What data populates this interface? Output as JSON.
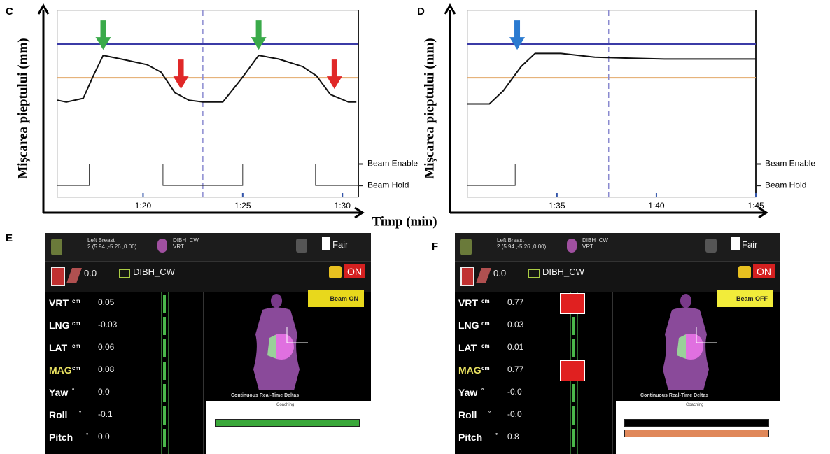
{
  "panels": {
    "c": "C",
    "d": "D",
    "e": "E",
    "f": "F"
  },
  "chart_data": [
    {
      "type": "line",
      "y_label": "Mișcarea pieptului (mm)",
      "x_label": "Timp (min)",
      "xlim": [
        75.7,
        90.8
      ],
      "ylim": [
        0,
        10
      ],
      "y2lim": [
        -0.55,
        8.16
      ],
      "xticks": [
        {
          "value": 80,
          "label": "1:20"
        },
        {
          "value": 85,
          "label": "1:25"
        },
        {
          "value": 90,
          "label": "1:30"
        }
      ],
      "y2ticks": [
        {
          "value": 1,
          "label": "Beam Enable"
        },
        {
          "value": 0,
          "label": "Beam Hold"
        }
      ],
      "hlines": [
        {
          "value": 8.2,
          "color": "#3b3ba6"
        },
        {
          "value": 6.4,
          "color": "#e3a868"
        }
      ],
      "vlines": [
        {
          "value": 83.0,
          "color": "#8a8ad0"
        }
      ],
      "arrows": [
        {
          "x": 78.0,
          "tip": 7.9,
          "color": "#3aaa4a"
        },
        {
          "x": 81.9,
          "tip": 5.8,
          "color": "#e02828"
        },
        {
          "x": 85.8,
          "tip": 7.9,
          "color": "#3aaa4a"
        },
        {
          "x": 89.6,
          "tip": 5.8,
          "color": "#e02828"
        }
      ],
      "series": [
        {
          "color": "#111111",
          "x": [
            75.7,
            76.15,
            77.0,
            77.5,
            78.0,
            78.9,
            80.2,
            80.9,
            81.6,
            82.3,
            83.0,
            84.0,
            84.9,
            85.8,
            86.8,
            88.0,
            88.7,
            89.4,
            90.3,
            90.7
          ],
          "values": [
            5.2,
            5.1,
            5.3,
            6.5,
            7.6,
            7.4,
            7.1,
            6.7,
            5.6,
            5.2,
            5.1,
            5.1,
            6.3,
            7.6,
            7.4,
            7.0,
            6.5,
            5.5,
            5.1,
            5.1
          ]
        },
        {
          "color": "#333333",
          "axis": "y2",
          "x": [
            75.7,
            77.3,
            77.3,
            81.0,
            81.0,
            85.0,
            85.0,
            88.65,
            88.65,
            90.8
          ],
          "values": [
            0,
            0,
            1,
            1,
            0,
            0,
            1,
            1,
            0,
            0
          ]
        }
      ]
    },
    {
      "type": "line",
      "y_label": "Mișcarea pieptului (mm)",
      "xlim": [
        90.5,
        105
      ],
      "ylim": [
        0,
        10
      ],
      "y2lim": [
        -0.55,
        8.16
      ],
      "xticks": [
        {
          "value": 95,
          "label": "1:35"
        },
        {
          "value": 100,
          "label": "1:40"
        },
        {
          "value": 105,
          "label": "1:45"
        }
      ],
      "y2ticks": [
        {
          "value": 1,
          "label": "Beam Enable"
        },
        {
          "value": 0,
          "label": "Beam Hold"
        }
      ],
      "hlines": [
        {
          "value": 8.2,
          "color": "#3b3ba6"
        },
        {
          "value": 6.4,
          "color": "#e3a868"
        }
      ],
      "vlines": [
        {
          "value": 97.6,
          "color": "#8a8ad0"
        }
      ],
      "arrows": [
        {
          "x": 93.0,
          "tip": 7.9,
          "color": "#2a7ad0"
        }
      ],
      "series": [
        {
          "color": "#111111",
          "x": [
            90.5,
            91.6,
            92.3,
            93.2,
            93.9,
            95.2,
            96.9,
            100.4,
            105
          ],
          "values": [
            5.0,
            5.0,
            5.7,
            7.0,
            7.7,
            7.7,
            7.5,
            7.4,
            7.4
          ]
        },
        {
          "color": "#333333",
          "axis": "y2",
          "x": [
            90.5,
            92.9,
            92.9,
            105
          ],
          "values": [
            0,
            0,
            1,
            1
          ]
        }
      ]
    }
  ],
  "screens": [
    {
      "site": "Left Breast",
      "position": "2 (5.94 ,-5.26 ,0.00)",
      "plan": "DIBH_CW",
      "plan_sub": "VRT",
      "quality": "Fair",
      "couch": "0.0",
      "roi": "DIBH_CW",
      "beam": "ON",
      "badge": "Beam ON",
      "deltas_title": "Continuous Real-Time Deltas",
      "coaching": "Coaching",
      "rows": [
        {
          "name": "VRT",
          "unit": "cm",
          "value": "0.05",
          "alarm": false
        },
        {
          "name": "LNG",
          "unit": "cm",
          "value": "-0.03",
          "alarm": false
        },
        {
          "name": "LAT",
          "unit": "cm",
          "value": "0.06",
          "alarm": false
        },
        {
          "name": "MAG",
          "unit": "cm",
          "value": "0.08",
          "alarm": false
        },
        {
          "name": "Yaw",
          "unit": "°",
          "value": "0.0",
          "alarm": false
        },
        {
          "name": "Roll",
          "unit": "°",
          "value": "-0.1",
          "alarm": false
        },
        {
          "name": "Pitch",
          "unit": "°",
          "value": "0.0",
          "alarm": false
        }
      ],
      "coaching_bars": [
        "#3aa83a"
      ],
      "badge_color": "#e8d81c"
    },
    {
      "site": "Left Breast",
      "position": "2 (5.94 ,-5.26 ,0.00)",
      "plan": "DIBH_CW",
      "plan_sub": "VRT",
      "quality": "Fair",
      "couch": "0.0",
      "roi": "DIBH_CW",
      "beam": "ON",
      "badge": "Beam OFF",
      "deltas_title": "Continuous Real-Time Deltas",
      "coaching": "Coaching",
      "rows": [
        {
          "name": "VRT",
          "unit": "cm",
          "value": "0.77",
          "alarm": true
        },
        {
          "name": "LNG",
          "unit": "cm",
          "value": "0.03",
          "alarm": false
        },
        {
          "name": "LAT",
          "unit": "cm",
          "value": "0.01",
          "alarm": false
        },
        {
          "name": "MAG",
          "unit": "cm",
          "value": "0.77",
          "alarm": true
        },
        {
          "name": "Yaw",
          "unit": "°",
          "value": "-0.0",
          "alarm": false
        },
        {
          "name": "Roll",
          "unit": "°",
          "value": "-0.0",
          "alarm": false
        },
        {
          "name": "Pitch",
          "unit": "°",
          "value": "0.8",
          "alarm": false
        }
      ],
      "coaching_bars": [
        "#000000",
        "#e0885a"
      ],
      "badge_color": "#f2ec3a"
    }
  ]
}
